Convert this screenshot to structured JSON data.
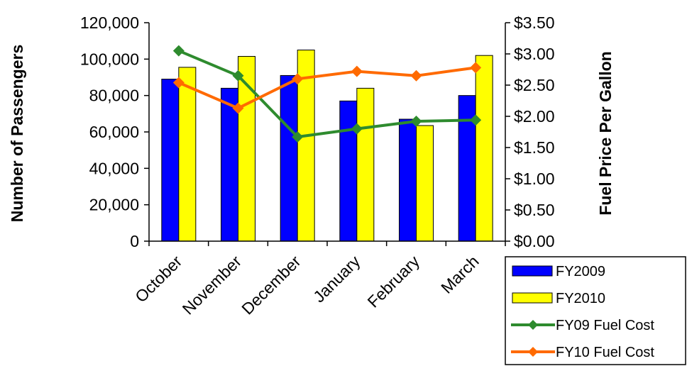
{
  "chart_data": {
    "type": "bar",
    "categories": [
      "October",
      "November",
      "December",
      "January",
      "February",
      "March"
    ],
    "series": [
      {
        "name": "FY2009",
        "kind": "bar",
        "axis": "left",
        "color": "#0000ff",
        "values": [
          89000,
          84000,
          91000,
          77000,
          67000,
          80000
        ]
      },
      {
        "name": "FY2010",
        "kind": "bar",
        "axis": "left",
        "color": "#ffff00",
        "values": [
          95500,
          101500,
          105000,
          84000,
          63500,
          102000
        ]
      },
      {
        "name": "FY09 Fuel Cost",
        "kind": "line",
        "axis": "right",
        "color": "#2e8b2e",
        "values": [
          3.05,
          2.65,
          1.67,
          1.8,
          1.92,
          1.94
        ]
      },
      {
        "name": "FY10 Fuel Cost",
        "kind": "line",
        "axis": "right",
        "color": "#ff6a00",
        "values": [
          2.54,
          2.13,
          2.6,
          2.72,
          2.65,
          2.78
        ]
      }
    ],
    "ylabel": "Number of Passengers",
    "y2label": "Fuel Price Per Gallon",
    "ylim": [
      0,
      120000
    ],
    "y2lim": [
      0,
      3.5
    ],
    "yticks": [
      "0",
      "20,000",
      "40,000",
      "60,000",
      "80,000",
      "100,000",
      "120,000"
    ],
    "y2ticks": [
      "$0.00",
      "$0.50",
      "$1.00",
      "$1.50",
      "$2.00",
      "$2.50",
      "$3.00",
      "$3.50"
    ],
    "grid": false,
    "legend_position": "bottom-right"
  }
}
